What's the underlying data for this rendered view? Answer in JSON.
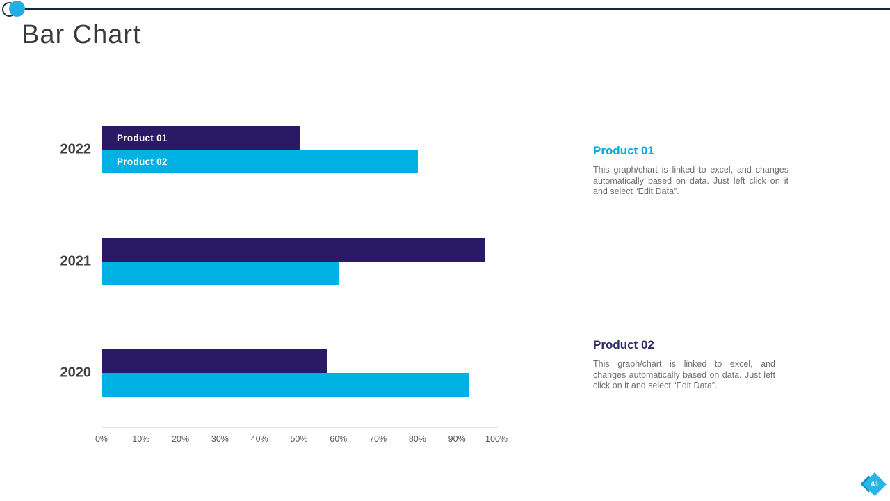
{
  "slide": {
    "title": "Bar Chart",
    "page_number": "41"
  },
  "colors": {
    "product1_navy": "#2a1a66",
    "product2_cyan": "#00b2e4",
    "accent_cyan": "#29b5e8",
    "accent_cyan_dark": "#0d8fc7",
    "header_line": "#1d2633"
  },
  "chart_data": {
    "type": "bar",
    "orientation": "horizontal",
    "title": "",
    "categories": [
      "2022",
      "2021",
      "2020"
    ],
    "series": [
      {
        "name": "Product 01",
        "color": "#2a1a66",
        "values": [
          50,
          97,
          57
        ]
      },
      {
        "name": "Product 02",
        "color": "#00b2e4",
        "values": [
          80,
          60,
          93
        ]
      }
    ],
    "x_ticks": [
      "0%",
      "10%",
      "20%",
      "30%",
      "40%",
      "50%",
      "60%",
      "70%",
      "80%",
      "90%",
      "100%"
    ],
    "xlim": [
      0,
      100
    ],
    "grid": false,
    "legend": "series names shown as labels inside the first (2022) group bars"
  },
  "info_blocks": [
    {
      "heading": "Product 01",
      "heading_color": "#00aadf",
      "body": "This graph/chart is linked to excel, and changes automatically based on data. Just left click on it and select “Edit Data”."
    },
    {
      "heading": "Product 02",
      "heading_color": "#2d2a70",
      "body": "This graph/chart is linked to excel, and changes automatically based on data. Just left click on it and select “Edit Data”."
    }
  ]
}
